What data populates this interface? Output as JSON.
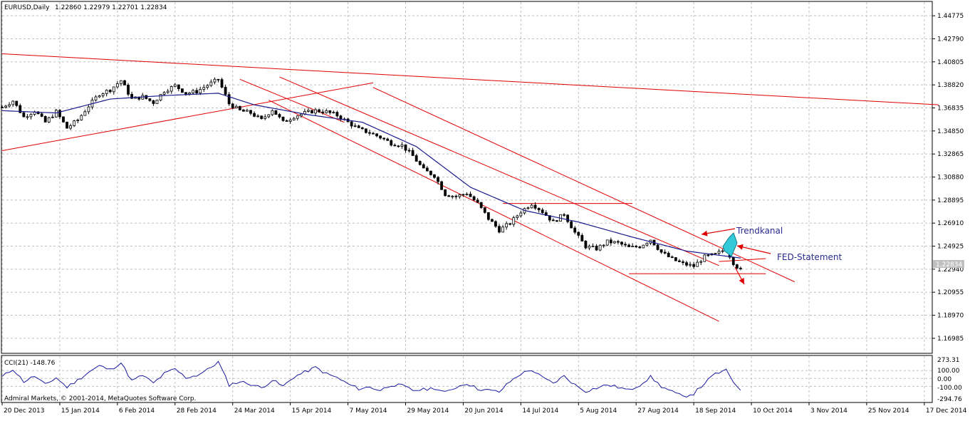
{
  "header": {
    "symbol_line": "EURUSD,Daily",
    "ohlc": "1.22860 1.22979 1.22701 1.22834"
  },
  "indicator": {
    "label": "CCI(21) -148.76",
    "y_labels": [
      "273.31",
      "100.00",
      "0.00",
      "-100.00",
      "-294.76"
    ]
  },
  "copyright": "Admiral Markets, © 2001-2014, MetaQuotes Software Corp.",
  "annotations": {
    "trendkanal": "Trendkanal",
    "fed": "FED-Statement"
  },
  "colors": {
    "bull": "#ffffff",
    "bear": "#000000",
    "ma": "#1a1a8c",
    "trend": "#e00000",
    "cci": "#1a1aa0",
    "grid": "#c0c0c0",
    "highlight": "#33c9d8",
    "label": "#2a2a90"
  },
  "chart_data": {
    "type": "candlestick",
    "symbol": "EURUSD",
    "timeframe": "Daily",
    "last_price": "1.22834",
    "y_ticks": [
      "1.44775",
      "1.42790",
      "1.40805",
      "1.38820",
      "1.36835",
      "1.34850",
      "1.32865",
      "1.30880",
      "1.28895",
      "1.26910",
      "1.24925",
      "1.22940",
      "1.20955",
      "1.18970",
      "1.16985"
    ],
    "ylim": [
      1.1575,
      1.4595
    ],
    "x_labels": [
      "20 Dec 2013",
      "15 Jan 2014",
      "6 Feb 2014",
      "28 Feb 2014",
      "24 Mar 2014",
      "15 Apr 2014",
      "7 May 2014",
      "29 May 2014",
      "20 Jun 2014",
      "14 Jul 2014",
      "5 Aug 2014",
      "27 Aug 2014",
      "18 Sep 2014",
      "10 Oct 2014",
      "3 Nov 2014",
      "25 Nov 2014",
      "17 Dec 2014"
    ],
    "close_path": [
      [
        0,
        1.369
      ],
      [
        3,
        1.3745
      ],
      [
        6,
        1.3605
      ],
      [
        9,
        1.366
      ],
      [
        12,
        1.356
      ],
      [
        15,
        1.365
      ],
      [
        18,
        1.351
      ],
      [
        21,
        1.358
      ],
      [
        24,
        1.37
      ],
      [
        27,
        1.3805
      ],
      [
        30,
        1.384
      ],
      [
        33,
        1.392
      ],
      [
        36,
        1.376
      ],
      [
        39,
        1.378
      ],
      [
        42,
        1.373
      ],
      [
        45,
        1.383
      ],
      [
        48,
        1.3875
      ],
      [
        51,
        1.381
      ],
      [
        54,
        1.3825
      ],
      [
        57,
        1.388
      ],
      [
        60,
        1.393
      ],
      [
        63,
        1.372
      ],
      [
        66,
        1.366
      ],
      [
        69,
        1.364
      ],
      [
        72,
        1.358
      ],
      [
        75,
        1.367
      ],
      [
        78,
        1.356
      ],
      [
        81,
        1.361
      ],
      [
        84,
        1.364
      ],
      [
        87,
        1.366
      ],
      [
        90,
        1.365
      ],
      [
        93,
        1.362
      ],
      [
        96,
        1.356
      ],
      [
        99,
        1.35
      ],
      [
        102,
        1.347
      ],
      [
        105,
        1.343
      ],
      [
        108,
        1.338
      ],
      [
        111,
        1.336
      ],
      [
        114,
        1.327
      ],
      [
        117,
        1.315
      ],
      [
        120,
        1.31
      ],
      [
        123,
        1.294
      ],
      [
        126,
        1.292
      ],
      [
        129,
        1.295
      ],
      [
        132,
        1.286
      ],
      [
        135,
        1.273
      ],
      [
        138,
        1.263
      ],
      [
        141,
        1.269
      ],
      [
        144,
        1.279
      ],
      [
        147,
        1.286
      ],
      [
        150,
        1.279
      ],
      [
        153,
        1.27
      ],
      [
        156,
        1.277
      ],
      [
        159,
        1.261
      ],
      [
        162,
        1.249
      ],
      [
        165,
        1.247
      ],
      [
        168,
        1.253
      ],
      [
        171,
        1.252
      ],
      [
        174,
        1.248
      ],
      [
        177,
        1.249
      ],
      [
        180,
        1.255
      ],
      [
        183,
        1.244
      ],
      [
        186,
        1.238
      ],
      [
        189,
        1.234
      ],
      [
        192,
        1.232
      ],
      [
        195,
        1.24
      ],
      [
        198,
        1.242
      ],
      [
        201,
        1.247
      ],
      [
        203,
        1.235
      ],
      [
        205,
        1.2283
      ]
    ],
    "ma_path": [
      [
        0,
        1.366
      ],
      [
        15,
        1.364
      ],
      [
        30,
        1.376
      ],
      [
        45,
        1.379
      ],
      [
        60,
        1.381
      ],
      [
        70,
        1.371
      ],
      [
        85,
        1.3625
      ],
      [
        100,
        1.356
      ],
      [
        115,
        1.335
      ],
      [
        130,
        1.3
      ],
      [
        145,
        1.28
      ],
      [
        160,
        1.27
      ],
      [
        175,
        1.257
      ],
      [
        190,
        1.245
      ],
      [
        205,
        1.239
      ]
    ],
    "trend_lines": [
      [
        [
          0,
          1.415
        ],
        [
          260,
          1.371
        ]
      ],
      [
        [
          0,
          1.3315
        ],
        [
          103,
          1.39
        ]
      ],
      [
        [
          77,
          1.395
        ],
        [
          199,
          1.2325
        ]
      ],
      [
        [
          103,
          1.386
        ],
        [
          220,
          1.2185
        ]
      ],
      [
        [
          74,
          1.375
        ],
        [
          199,
          1.1845
        ]
      ],
      [
        [
          139,
          1.286
        ],
        [
          175,
          1.286
        ]
      ],
      [
        [
          174,
          1.2255
        ],
        [
          212,
          1.2255
        ]
      ],
      [
        [
          199,
          1.236
        ],
        [
          212,
          1.2385
        ]
      ],
      [
        [
          66,
          1.393
        ],
        [
          95,
          1.356
        ]
      ]
    ],
    "cci_values": [
      [
        0,
        20
      ],
      [
        3,
        120
      ],
      [
        6,
        -40
      ],
      [
        9,
        30
      ],
      [
        12,
        -80
      ],
      [
        15,
        10
      ],
      [
        18,
        -110
      ],
      [
        21,
        -20
      ],
      [
        24,
        80
      ],
      [
        27,
        160
      ],
      [
        30,
        110
      ],
      [
        33,
        200
      ],
      [
        36,
        -30
      ],
      [
        39,
        40
      ],
      [
        42,
        -60
      ],
      [
        45,
        60
      ],
      [
        48,
        120
      ],
      [
        51,
        10
      ],
      [
        54,
        40
      ],
      [
        57,
        110
      ],
      [
        60,
        210
      ],
      [
        63,
        -80
      ],
      [
        66,
        -40
      ],
      [
        69,
        -70
      ],
      [
        72,
        -120
      ],
      [
        75,
        -20
      ],
      [
        78,
        -100
      ],
      [
        81,
        20
      ],
      [
        84,
        80
      ],
      [
        87,
        140
      ],
      [
        90,
        60
      ],
      [
        93,
        10
      ],
      [
        96,
        -70
      ],
      [
        99,
        -130
      ],
      [
        102,
        -110
      ],
      [
        105,
        -150
      ],
      [
        108,
        -80
      ],
      [
        111,
        -90
      ],
      [
        114,
        -150
      ],
      [
        117,
        -140
      ],
      [
        120,
        -120
      ],
      [
        123,
        -180
      ],
      [
        126,
        -110
      ],
      [
        129,
        -60
      ],
      [
        132,
        -130
      ],
      [
        135,
        -150
      ],
      [
        138,
        -170
      ],
      [
        141,
        -40
      ],
      [
        144,
        60
      ],
      [
        147,
        110
      ],
      [
        150,
        10
      ],
      [
        153,
        -60
      ],
      [
        156,
        30
      ],
      [
        159,
        -80
      ],
      [
        162,
        -160
      ],
      [
        165,
        -120
      ],
      [
        168,
        -80
      ],
      [
        171,
        -110
      ],
      [
        174,
        -150
      ],
      [
        177,
        -80
      ],
      [
        180,
        20
      ],
      [
        183,
        -100
      ],
      [
        186,
        -170
      ],
      [
        189,
        -230
      ],
      [
        192,
        -190
      ],
      [
        195,
        -60
      ],
      [
        198,
        60
      ],
      [
        201,
        100
      ],
      [
        203,
        -40
      ],
      [
        205,
        -148.76
      ]
    ]
  }
}
